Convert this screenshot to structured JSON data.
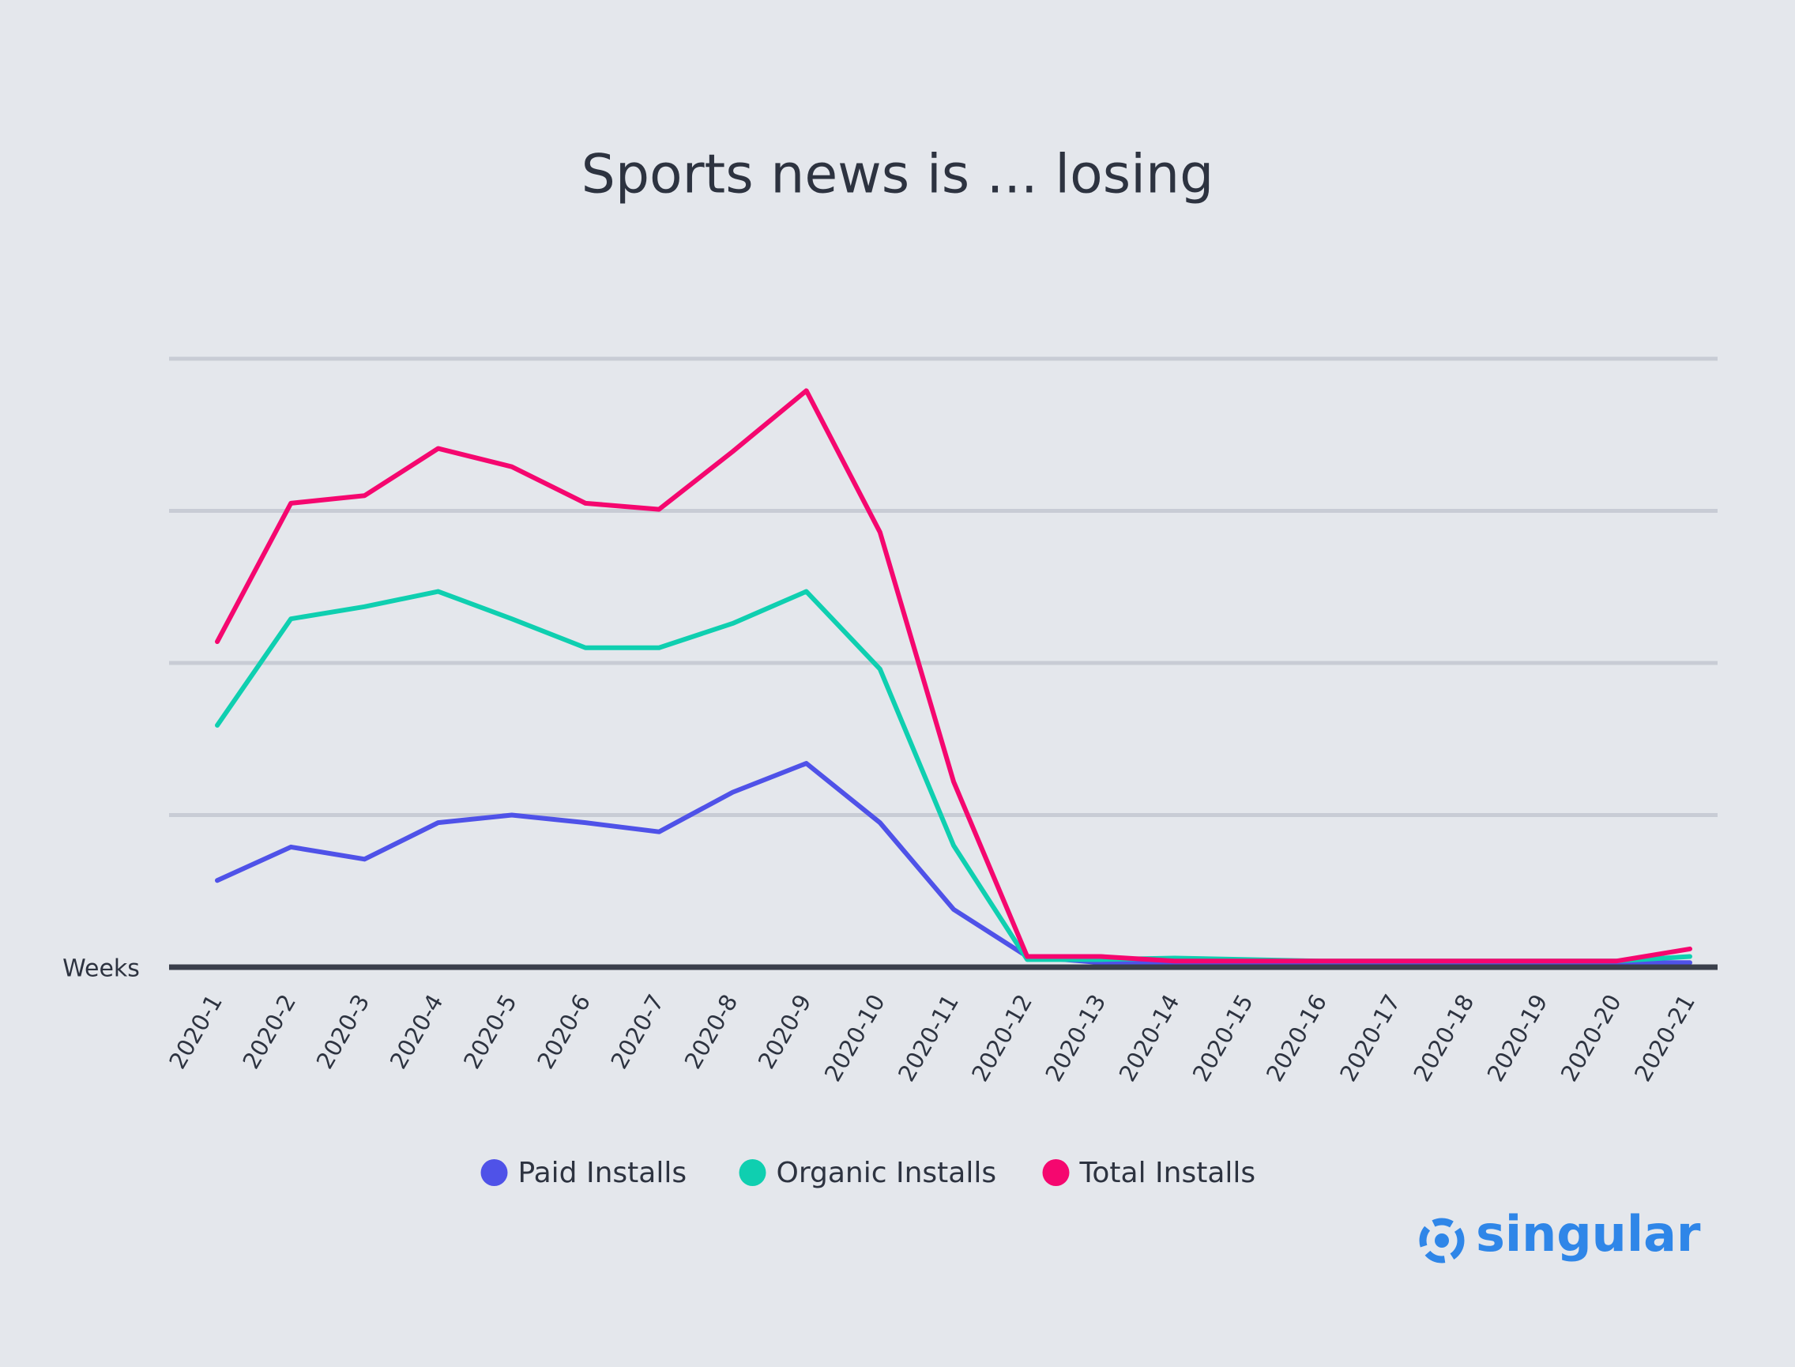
{
  "chart_data": {
    "type": "line",
    "title": "Sports news is ... losing",
    "x_label": "Weeks",
    "brand": "singular",
    "categories": [
      "2020-1",
      "2020-2",
      "2020-3",
      "2020-4",
      "2020-5",
      "2020-6",
      "2020-7",
      "2020-8",
      "2020-9",
      "2020-10",
      "2020-11",
      "2020-12",
      "2020-13",
      "2020-14",
      "2020-15",
      "2020-16",
      "2020-17",
      "2020-18",
      "2020-19",
      "2020-20",
      "2020-21"
    ],
    "series": [
      {
        "name": "Paid Installs",
        "color": "#4f52e8",
        "values": [
          0.57,
          0.79,
          0.71,
          0.95,
          1.0,
          0.95,
          0.89,
          1.15,
          1.34,
          0.95,
          0.38,
          0.07,
          0.03,
          0.03,
          0.03,
          0.03,
          0.03,
          0.03,
          0.03,
          0.03,
          0.03
        ]
      },
      {
        "name": "Organic Installs",
        "color": "#0fcfb0",
        "values": [
          1.59,
          2.29,
          2.37,
          2.47,
          2.29,
          2.1,
          2.1,
          2.26,
          2.47,
          1.96,
          0.8,
          0.05,
          0.05,
          0.06,
          0.05,
          0.04,
          0.04,
          0.04,
          0.04,
          0.04,
          0.07
        ]
      },
      {
        "name": "Total Installs",
        "color": "#f5076f",
        "values": [
          2.14,
          3.05,
          3.1,
          3.41,
          3.29,
          3.05,
          3.01,
          3.39,
          3.79,
          2.86,
          1.22,
          0.07,
          0.07,
          0.04,
          0.04,
          0.04,
          0.04,
          0.04,
          0.04,
          0.04,
          0.12
        ]
      }
    ],
    "ylim": [
      0,
      4
    ],
    "grid_lines": [
      0,
      1,
      2,
      3,
      4
    ],
    "grid": true
  }
}
